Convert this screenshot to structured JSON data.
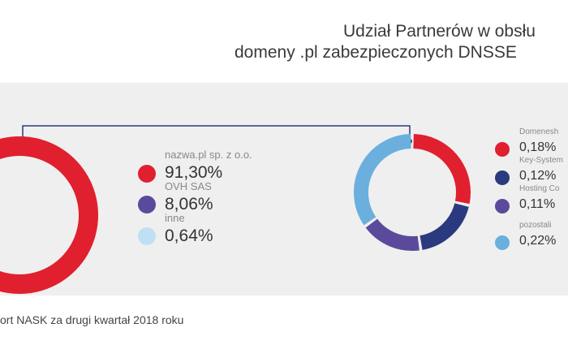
{
  "title_line1": "Udział Partnerów w obsłu",
  "title_line2": "domeny .pl zabezpieczonych DNSSE",
  "footer": "ort NASK za drugi kwartał 2018 roku",
  "chart_data": [
    {
      "type": "pie",
      "variant": "donut",
      "categories": [
        "nazwa.pl sp. z o.o.",
        "OVH SAS",
        "inne"
      ],
      "values": [
        91.3,
        8.06,
        0.64
      ],
      "value_labels": [
        "91,30%",
        "8,06%",
        "0,64%"
      ],
      "colors": [
        "#e0202e",
        "#5b4a9b",
        "#bfe0f3"
      ]
    },
    {
      "type": "pie",
      "variant": "donut",
      "categories": [
        "Domenesh",
        "Key-System",
        "Hosting Co",
        "pozostali"
      ],
      "values": [
        0.18,
        0.12,
        0.11,
        0.22
      ],
      "value_labels": [
        "0,18%",
        "0,12%",
        "0,11%",
        "0,22%"
      ],
      "colors": [
        "#e0202e",
        "#2b3a7e",
        "#5b4a9b",
        "#6aafde"
      ]
    }
  ]
}
